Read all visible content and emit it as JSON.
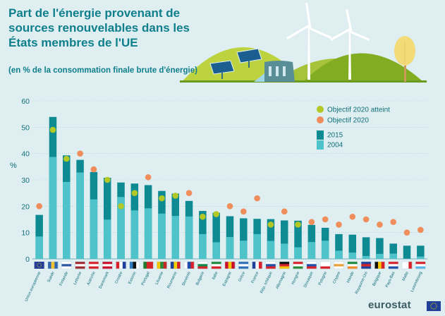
{
  "header": {
    "title": "Part de l'énergie provenant de sources renouvelables dans les États membres de l'UE",
    "subtitle": "(en % de la consommation finale brute d'énergie)"
  },
  "brand": {
    "name": "eurostat"
  },
  "colors": {
    "bar_2015": "#0e8a93",
    "bar_2004": "#4fc3ca",
    "target_reached": "#b3c725",
    "target": "#ef8d5b",
    "hill_light": "#bcd33f",
    "hill_dark": "#82ad23",
    "axis_text": "#0f6f7a"
  },
  "chart_data": {
    "type": "bar",
    "ylabel": "%",
    "ylim": [
      0,
      60
    ],
    "yticks": [
      0,
      10,
      20,
      30,
      40,
      50,
      60
    ],
    "grid": true,
    "legend": {
      "position": "top-right",
      "target_reached_label": "Objectif 2020 atteint",
      "target_label": "Objectif 2020",
      "series_2015_label": "2015",
      "series_2004_label": "2004"
    },
    "categories": [
      "Union européenne",
      "Suède",
      "Finlande",
      "Lettonie",
      "Autriche",
      "Danemark",
      "Croatie",
      "Estonie",
      "Portugal",
      "Lituanie",
      "Roumanie",
      "Slovénie",
      "Bulgarie",
      "Italie",
      "Espagne",
      "Grèce",
      "France",
      "Rép. tchèque",
      "Allemagne",
      "Hongrie",
      "Slovaquie",
      "Pologne",
      "Chypre",
      "Irlande",
      "Royaume-Uni",
      "Belgique",
      "Pays-Bas",
      "Malte",
      "Luxembourg"
    ],
    "series": [
      {
        "name": "2015",
        "values": [
          16.7,
          53.9,
          39.3,
          37.6,
          33.0,
          30.8,
          29.0,
          28.6,
          28.0,
          25.8,
          24.8,
          22.0,
          18.2,
          17.5,
          16.2,
          15.4,
          15.2,
          15.1,
          14.6,
          14.5,
          12.9,
          11.8,
          9.4,
          9.2,
          8.2,
          7.9,
          5.8,
          5.0,
          5.0
        ]
      },
      {
        "name": "2004",
        "values": [
          8.5,
          38.7,
          29.2,
          32.8,
          22.6,
          14.9,
          23.5,
          18.4,
          19.2,
          17.2,
          16.3,
          16.1,
          9.4,
          6.3,
          8.3,
          6.9,
          9.4,
          6.8,
          5.8,
          4.4,
          6.4,
          6.9,
          3.1,
          2.4,
          1.1,
          1.9,
          2.0,
          0.1,
          0.9
        ]
      },
      {
        "name": "Objectif 2020",
        "values": [
          20,
          49,
          38,
          40,
          34,
          30,
          20,
          25,
          31,
          23,
          24,
          25,
          16,
          17,
          20,
          18,
          23,
          13,
          18,
          13,
          14,
          15,
          13,
          16,
          15,
          13,
          14,
          10,
          11
        ]
      }
    ],
    "target_reached": [
      false,
      true,
      true,
      false,
      false,
      true,
      true,
      true,
      false,
      true,
      true,
      false,
      true,
      true,
      false,
      false,
      false,
      true,
      false,
      true,
      false,
      false,
      false,
      false,
      false,
      false,
      false,
      false,
      false
    ]
  },
  "flags": [
    [
      "#233e99",
      "#233e99",
      "#233e99"
    ],
    [
      "#2f67b1",
      "#f2c230",
      "#2f67b1"
    ],
    [
      "#ffffff",
      "#2d57a0",
      "#ffffff"
    ],
    [
      "#9e2a34",
      "#ffffff",
      "#9e2a34"
    ],
    [
      "#d8222a",
      "#ffffff",
      "#d8222a"
    ],
    [
      "#c8102e",
      "#ffffff",
      "#c8102e"
    ],
    [
      "#d8222a",
      "#ffffff",
      "#1f3f99"
    ],
    [
      "#2f7ac0",
      "#111111",
      "#ffffff"
    ],
    [
      "#1f7a2c",
      "#d8222a",
      "#d8222a"
    ],
    [
      "#f5c400",
      "#2a8a3a",
      "#c62828"
    ],
    [
      "#1f3f99",
      "#f5d000",
      "#d8222a"
    ],
    [
      "#ffffff",
      "#1f4fa8",
      "#d8222a"
    ],
    [
      "#ffffff",
      "#0f8a4a",
      "#d8222a"
    ],
    [
      "#1f8a3a",
      "#ffffff",
      "#d8222a"
    ],
    [
      "#c8102e",
      "#f5c400",
      "#c8102e"
    ],
    [
      "#2f6fb8",
      "#ffffff",
      "#2f6fb8"
    ],
    [
      "#1f3f99",
      "#ffffff",
      "#d8222a"
    ],
    [
      "#ffffff",
      "#1f4fa8",
      "#d8222a"
    ],
    [
      "#111111",
      "#d8222a",
      "#f5c400"
    ],
    [
      "#d8222a",
      "#ffffff",
      "#2a8a3a"
    ],
    [
      "#ffffff",
      "#1f4fa8",
      "#d8222a"
    ],
    [
      "#ffffff",
      "#ffffff",
      "#d8222a"
    ],
    [
      "#ffffff",
      "#e7a23a",
      "#ffffff"
    ],
    [
      "#1f8a3a",
      "#ffffff",
      "#f08c2a"
    ],
    [
      "#1f3f99",
      "#d8222a",
      "#1f3f99"
    ],
    [
      "#111111",
      "#f5c400",
      "#d8222a"
    ],
    [
      "#d8222a",
      "#ffffff",
      "#1f4fa8"
    ],
    [
      "#ffffff",
      "#ffffff",
      "#d8222a"
    ],
    [
      "#d8222a",
      "#ffffff",
      "#5ab4e8"
    ]
  ]
}
